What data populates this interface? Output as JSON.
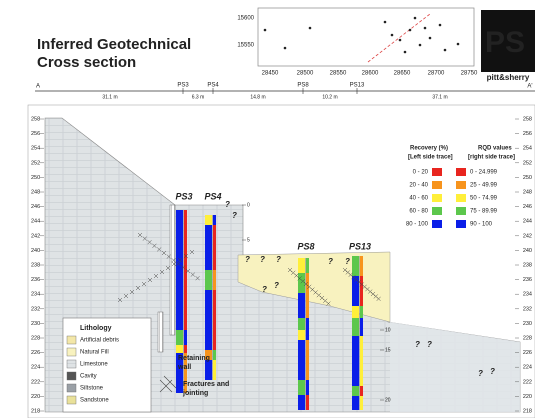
{
  "header": {
    "title_line1": "Inferred Geotechnical",
    "title_line2": "Cross section",
    "logo_letters": "PS",
    "logo_text": "pitt&sherry"
  },
  "location_plan": {
    "y_ticks": [
      15600,
      15550
    ],
    "x_ticks": [
      28450,
      28500,
      28550,
      28600,
      28650,
      28700,
      28750
    ]
  },
  "section_line": {
    "start": "A",
    "end": "A'",
    "boreholes": [
      "PS3",
      "PS4",
      "PS8",
      "PS13"
    ],
    "distances": [
      "31.1 m",
      "6.3 m",
      "14.8 m",
      "10.2 m",
      "37.1 m"
    ]
  },
  "elevation_ticks": [
    258,
    256,
    254,
    252,
    250,
    248,
    246,
    244,
    242,
    240,
    238,
    236,
    234,
    232,
    230,
    228,
    226,
    224,
    222,
    220,
    218
  ],
  "boreholes": [
    "PS3",
    "PS4",
    "PS8",
    "PS13"
  ],
  "depth_marks": [
    0,
    5,
    10,
    15,
    20
  ],
  "recovery_legend": {
    "title": "Recovery (%)",
    "subtitle": "[Left side trace]",
    "classes": [
      "0 - 20",
      "20 - 40",
      "40 - 60",
      "60 - 80",
      "80 - 100"
    ]
  },
  "rqd_legend": {
    "title": "RQD values",
    "subtitle": "[right side trace]",
    "classes": [
      "0 - 24.999",
      "25 - 49.99",
      "50 - 74.99",
      "75 - 89.99",
      "90 - 100"
    ]
  },
  "lithology_legend": {
    "title": "Lithology",
    "items": [
      "Artificial debris",
      "Natural Fill",
      "Limestone",
      "Cavity",
      "Siltstone",
      "Sandstone"
    ]
  },
  "annotations": {
    "retaining_1": "Retaining",
    "retaining_2": "wall",
    "fractures_1": "Fractures and",
    "fractures_2": "jointing",
    "unknown": "?"
  }
}
